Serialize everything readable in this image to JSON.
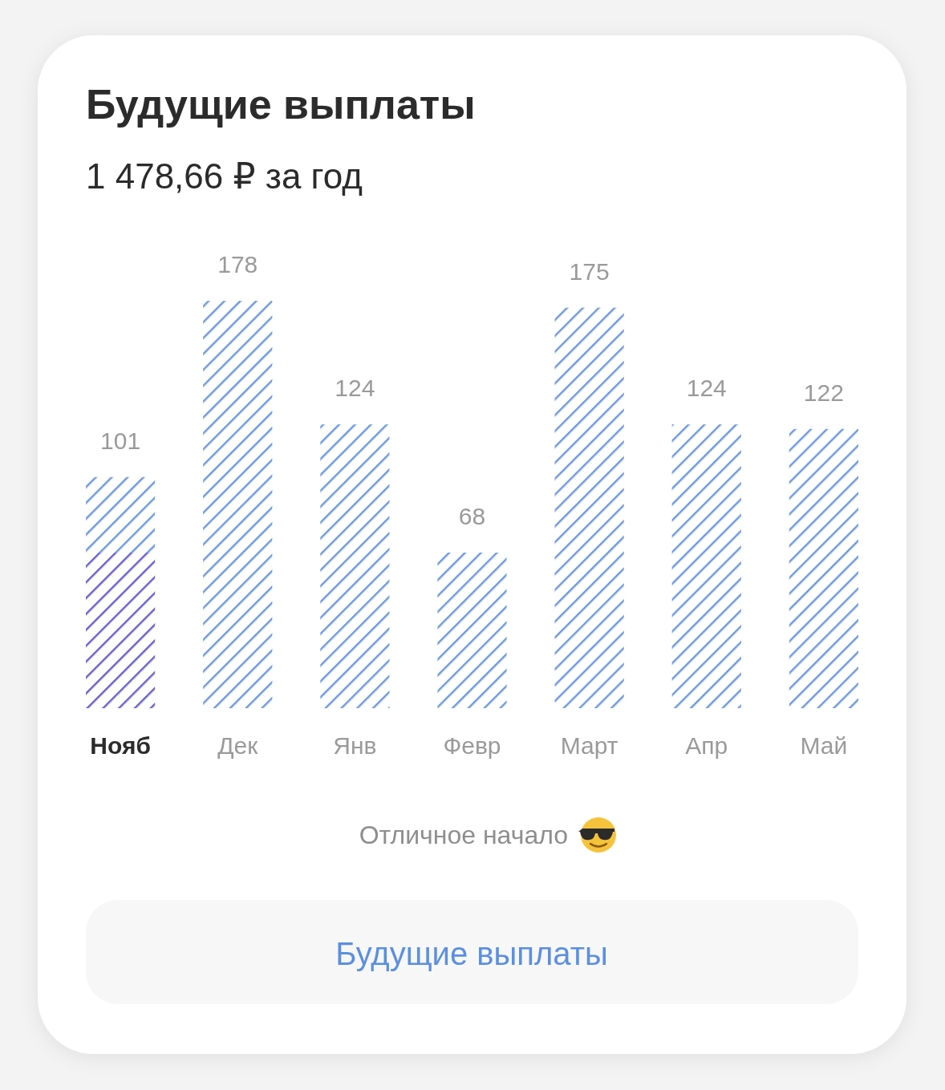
{
  "chart_data": {
    "type": "bar",
    "title": "Будущие выплаты",
    "subtitle": "1 478,66 ₽ за год",
    "categories": [
      "Нояб",
      "Дек",
      "Янв",
      "Февр",
      "Март",
      "Апр",
      "Май"
    ],
    "stacked": true,
    "series": [
      {
        "color": "#6a62cc",
        "values": [
          68,
          null,
          null,
          null,
          null,
          null,
          null
        ]
      },
      {
        "color": "#6f9ae0",
        "values": [
          33,
          178,
          124,
          68,
          175,
          124,
          122
        ],
        "value_labels": [
          null,
          "178",
          "124",
          "68",
          "175",
          "124",
          "122"
        ]
      }
    ],
    "totals": [
      "101",
      null,
      null,
      null,
      null,
      null,
      null
    ],
    "annotations": [
      "Отличное начало",
      "Будущие выплаты"
    ]
  }
}
